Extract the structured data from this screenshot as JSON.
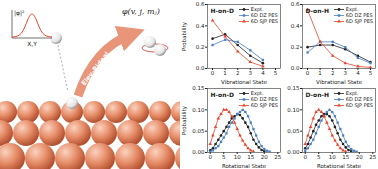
{
  "diagram": {
    "process": "Eley-Rideal",
    "state": "φ(v, j, mⱼ)",
    "inset_y": "|φ|²",
    "inset_x": "X,Y"
  },
  "chart_data": [
    {
      "type": "line",
      "title": "H-on-D",
      "xlabel": "Vibrational State",
      "ylabel": "Probability",
      "xlim": [
        -0.4,
        5.4
      ],
      "xticks": [
        0,
        1,
        2,
        3,
        4,
        5
      ],
      "ylim": [
        0,
        0.6
      ],
      "yticks": [
        {
          "value": 0,
          "label": "0.0"
        },
        {
          "value": 0.2,
          "label": "0.2"
        },
        {
          "value": 0.4,
          "label": "0.4"
        },
        {
          "value": 0.6,
          "label": "0.6"
        }
      ],
      "legend": "upper right",
      "series": [
        {
          "name": "Expt.",
          "color": "#222222",
          "marker": "circle",
          "x": [
            0,
            1,
            2,
            3,
            4
          ],
          "values": [
            0.28,
            0.32,
            0.22,
            0.12,
            0.05
          ]
        },
        {
          "name": "6D DZ PES",
          "color": "#4a7fc1",
          "marker": "square",
          "x": [
            0,
            1,
            2,
            3,
            4
          ],
          "values": [
            0.22,
            0.27,
            0.25,
            0.17,
            0.08
          ]
        },
        {
          "name": "6D SJP PES",
          "color": "#e8452c",
          "marker": "triangle",
          "x": [
            0,
            1,
            2,
            3,
            4
          ],
          "values": [
            0.45,
            0.3,
            0.16,
            0.06,
            0.02
          ]
        }
      ]
    },
    {
      "type": "line",
      "title": "D-on-H",
      "xlabel": "Vibrational State",
      "xlim": [
        -0.4,
        5.4
      ],
      "xticks": [
        0,
        1,
        2,
        3,
        4,
        5
      ],
      "ylim": [
        0,
        0.6
      ],
      "yticks": [
        {
          "value": 0,
          "label": "0.0"
        },
        {
          "value": 0.2,
          "label": "0.2"
        },
        {
          "value": 0.4,
          "label": "0.4"
        },
        {
          "value": 0.6,
          "label": "0.6"
        }
      ],
      "legend": "upper right",
      "series": [
        {
          "name": "Expt.",
          "color": "#222222",
          "marker": "circle",
          "x": [
            0,
            1,
            2,
            3,
            4,
            5
          ],
          "values": [
            0.2,
            0.22,
            0.22,
            0.18,
            0.12,
            0.06
          ]
        },
        {
          "name": "6D DZ PES",
          "color": "#4a7fc1",
          "marker": "square",
          "x": [
            0,
            1,
            2,
            3,
            4,
            5
          ],
          "values": [
            0.15,
            0.25,
            0.25,
            0.2,
            0.1,
            0.05
          ]
        },
        {
          "name": "6D SJP PES",
          "color": "#e8452c",
          "marker": "triangle",
          "x": [
            0,
            1,
            2,
            3,
            4,
            5
          ],
          "values": [
            0.55,
            0.25,
            0.12,
            0.05,
            0.02,
            0.01
          ]
        }
      ]
    },
    {
      "type": "line",
      "title": "H-on-D",
      "xlabel": "Rotational State",
      "ylabel": "Probability",
      "xlim": [
        -1,
        26
      ],
      "xticks": [
        0,
        5,
        10,
        15,
        20,
        25
      ],
      "ylim": [
        0,
        0.15
      ],
      "yticks": [
        {
          "value": 0,
          "label": "0.00"
        },
        {
          "value": 0.05,
          "label": "0.05"
        },
        {
          "value": 0.1,
          "label": "0.10"
        },
        {
          "value": 0.15,
          "label": "0.15"
        }
      ],
      "legend": "upper right",
      "series": [
        {
          "name": "Expt.",
          "color": "#222222",
          "marker": "circle",
          "x": [
            0,
            1,
            2,
            3,
            4,
            5,
            6,
            7,
            8,
            9,
            10,
            11,
            12,
            13,
            14,
            15,
            16,
            17,
            18,
            19,
            20
          ],
          "values": [
            0.005,
            0.01,
            0.02,
            0.03,
            0.04,
            0.05,
            0.06,
            0.07,
            0.08,
            0.085,
            0.09,
            0.088,
            0.08,
            0.07,
            0.06,
            0.045,
            0.03,
            0.02,
            0.012,
            0.006,
            0.003
          ]
        },
        {
          "name": "6D DZ PES",
          "color": "#4a7fc1",
          "marker": "square",
          "x": [
            0,
            1,
            2,
            3,
            4,
            5,
            6,
            7,
            8,
            9,
            10,
            11,
            12,
            13,
            14,
            15,
            16,
            17,
            18,
            19,
            20,
            21,
            22
          ],
          "values": [
            0.002,
            0.005,
            0.01,
            0.015,
            0.025,
            0.035,
            0.045,
            0.06,
            0.07,
            0.08,
            0.09,
            0.095,
            0.1,
            0.095,
            0.085,
            0.07,
            0.055,
            0.04,
            0.025,
            0.015,
            0.008,
            0.004,
            0.002
          ]
        },
        {
          "name": "6D SJP PES",
          "color": "#e8452c",
          "marker": "triangle",
          "x": [
            0,
            1,
            2,
            3,
            4,
            5,
            6,
            7,
            8,
            9,
            10,
            11,
            12,
            13,
            14,
            15,
            16
          ],
          "values": [
            0.02,
            0.04,
            0.06,
            0.08,
            0.09,
            0.1,
            0.1,
            0.095,
            0.085,
            0.07,
            0.055,
            0.04,
            0.028,
            0.018,
            0.01,
            0.005,
            0.002
          ]
        }
      ]
    },
    {
      "type": "line",
      "title": "D-on-H",
      "xlabel": "Rotational State",
      "xlim": [
        -1,
        26
      ],
      "xticks": [
        0,
        5,
        10,
        15,
        20,
        25
      ],
      "ylim": [
        0,
        0.15
      ],
      "yticks": [
        {
          "value": 0,
          "label": "0.00"
        },
        {
          "value": 0.05,
          "label": "0.05"
        },
        {
          "value": 0.1,
          "label": "0.10"
        },
        {
          "value": 0.15,
          "label": "0.15"
        }
      ],
      "legend": "upper right",
      "series": [
        {
          "name": "Expt.",
          "color": "#222222",
          "marker": "circle",
          "x": [
            0,
            1,
            2,
            3,
            4,
            5,
            6,
            7,
            8,
            9,
            10,
            11,
            12,
            13,
            14,
            15,
            16,
            17
          ],
          "values": [
            0.01,
            0.02,
            0.035,
            0.05,
            0.065,
            0.075,
            0.085,
            0.09,
            0.09,
            0.085,
            0.075,
            0.06,
            0.045,
            0.03,
            0.02,
            0.012,
            0.006,
            0.003
          ]
        },
        {
          "name": "6D DZ PES",
          "color": "#4a7fc1",
          "marker": "square",
          "x": [
            0,
            1,
            2,
            3,
            4,
            5,
            6,
            7,
            8,
            9,
            10,
            11,
            12,
            13,
            14,
            15,
            16,
            17,
            18,
            19
          ],
          "values": [
            0.004,
            0.01,
            0.02,
            0.03,
            0.045,
            0.06,
            0.075,
            0.085,
            0.095,
            0.1,
            0.095,
            0.085,
            0.07,
            0.055,
            0.04,
            0.025,
            0.015,
            0.008,
            0.004,
            0.002
          ]
        },
        {
          "name": "6D SJP PES",
          "color": "#e8452c",
          "marker": "triangle",
          "x": [
            0,
            1,
            2,
            3,
            4,
            5,
            6,
            7,
            8,
            9,
            10,
            11,
            12,
            13,
            14,
            15
          ],
          "values": [
            0.02,
            0.04,
            0.06,
            0.08,
            0.095,
            0.1,
            0.095,
            0.085,
            0.07,
            0.055,
            0.04,
            0.028,
            0.018,
            0.01,
            0.005,
            0.002
          ]
        }
      ]
    }
  ]
}
